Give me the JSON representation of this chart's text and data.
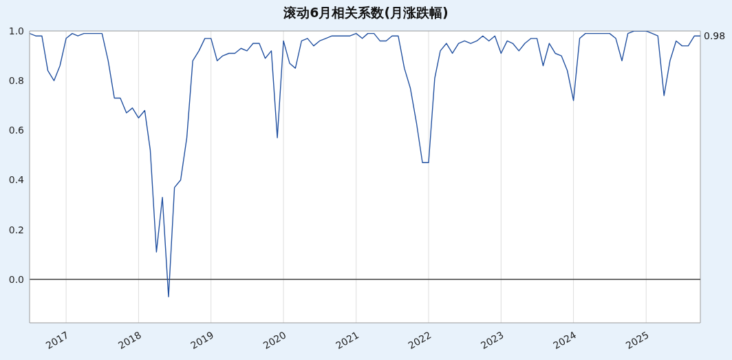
{
  "chart_data": {
    "type": "line",
    "title": "滚动6月相关系数(月涨跌幅)",
    "x": [
      "2016-07",
      "2016-08",
      "2016-09",
      "2016-10",
      "2016-11",
      "2016-12",
      "2017-01",
      "2017-02",
      "2017-03",
      "2017-04",
      "2017-05",
      "2017-06",
      "2017-07",
      "2017-08",
      "2017-09",
      "2017-10",
      "2017-11",
      "2017-12",
      "2018-01",
      "2018-02",
      "2018-03",
      "2018-04",
      "2018-05",
      "2018-06",
      "2018-07",
      "2018-08",
      "2018-09",
      "2018-10",
      "2018-11",
      "2018-12",
      "2019-01",
      "2019-02",
      "2019-03",
      "2019-04",
      "2019-05",
      "2019-06",
      "2019-07",
      "2019-08",
      "2019-09",
      "2019-10",
      "2019-11",
      "2019-12",
      "2020-01",
      "2020-02",
      "2020-03",
      "2020-04",
      "2020-05",
      "2020-06",
      "2020-07",
      "2020-08",
      "2020-09",
      "2020-10",
      "2020-11",
      "2020-12",
      "2021-01",
      "2021-02",
      "2021-03",
      "2021-04",
      "2021-05",
      "2021-06",
      "2021-07",
      "2021-08",
      "2021-09",
      "2021-10",
      "2021-11",
      "2021-12",
      "2022-01",
      "2022-02",
      "2022-03",
      "2022-04",
      "2022-05",
      "2022-06",
      "2022-07",
      "2022-08",
      "2022-09",
      "2022-10",
      "2022-11",
      "2022-12",
      "2023-01",
      "2023-02",
      "2023-03",
      "2023-04",
      "2023-05",
      "2023-06",
      "2023-07",
      "2023-08",
      "2023-09",
      "2023-10",
      "2023-11",
      "2023-12",
      "2024-01",
      "2024-02",
      "2024-03",
      "2024-04",
      "2024-05",
      "2024-06",
      "2024-07",
      "2024-08",
      "2024-09",
      "2024-10",
      "2024-11",
      "2024-12",
      "2025-01",
      "2025-02",
      "2025-03",
      "2025-04",
      "2025-05",
      "2025-06",
      "2025-07",
      "2025-08",
      "2025-09",
      "2025-10"
    ],
    "series": [
      {
        "color": "#2150a0",
        "values": [
          0.99,
          0.98,
          0.98,
          0.84,
          0.8,
          0.86,
          0.97,
          0.99,
          0.98,
          0.99,
          0.99,
          0.99,
          0.99,
          0.88,
          0.73,
          0.73,
          0.67,
          0.69,
          0.65,
          0.68,
          0.52,
          0.11,
          0.33,
          -0.07,
          0.37,
          0.4,
          0.57,
          0.88,
          0.92,
          0.97,
          0.97,
          0.88,
          0.9,
          0.91,
          0.91,
          0.93,
          0.92,
          0.95,
          0.95,
          0.89,
          0.92,
          0.57,
          0.96,
          0.87,
          0.85,
          0.96,
          0.97,
          0.94,
          0.96,
          0.97,
          0.98,
          0.98,
          0.98,
          0.98,
          0.99,
          0.97,
          0.99,
          0.99,
          0.96,
          0.96,
          0.98,
          0.98,
          0.85,
          0.77,
          0.63,
          0.47,
          0.47,
          0.81,
          0.92,
          0.95,
          0.91,
          0.95,
          0.96,
          0.95,
          0.96,
          0.98,
          0.96,
          0.98,
          0.91,
          0.96,
          0.95,
          0.92,
          0.95,
          0.97,
          0.97,
          0.86,
          0.95,
          0.91,
          0.9,
          0.84,
          0.72,
          0.97,
          0.99,
          0.99,
          0.99,
          0.99,
          0.99,
          0.97,
          0.88,
          0.99,
          1.0,
          1.0,
          1.0,
          0.99,
          0.98,
          0.74,
          0.88,
          0.96,
          0.94,
          0.94,
          0.98,
          0.98
        ]
      }
    ],
    "xlim": [
      "2016-07",
      "2025-10"
    ],
    "xticks": [
      {
        "value": "2017-01",
        "label": "2017"
      },
      {
        "value": "2018-01",
        "label": "2018"
      },
      {
        "value": "2019-01",
        "label": "2019"
      },
      {
        "value": "2020-01",
        "label": "2020"
      },
      {
        "value": "2021-01",
        "label": "2021"
      },
      {
        "value": "2022-01",
        "label": "2022"
      },
      {
        "value": "2023-01",
        "label": "2023"
      },
      {
        "value": "2024-01",
        "label": "2024"
      },
      {
        "value": "2025-01",
        "label": "2025"
      }
    ],
    "ylim": [
      -0.175,
      1.0
    ],
    "yticks": [
      {
        "value": 0,
        "label": "0.0"
      },
      0.2,
      0.4,
      0.6,
      0.8,
      {
        "value": 1,
        "label": "1.0"
      }
    ],
    "grid": "x",
    "ref_lines": [
      {
        "axis": "y",
        "value": 0,
        "color": "#444444"
      }
    ],
    "annotations": [
      {
        "text": "0.98",
        "x": "2025-10",
        "y": 0.98
      }
    ]
  }
}
